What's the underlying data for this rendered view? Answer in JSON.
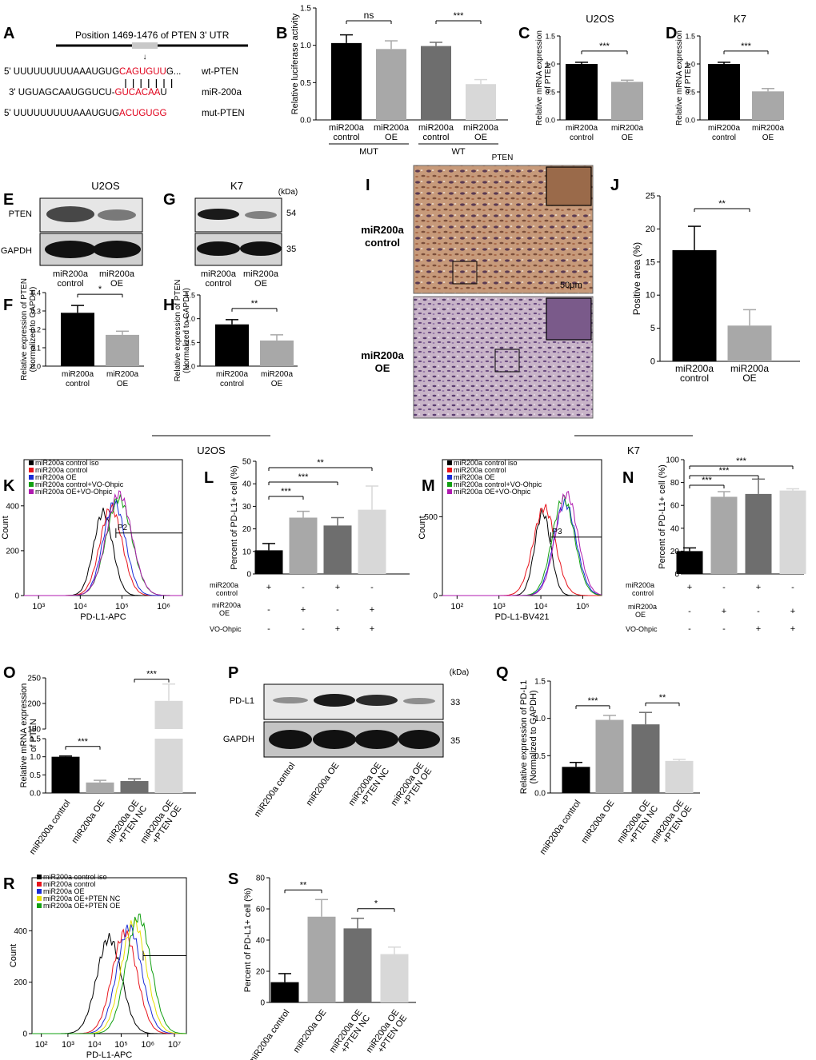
{
  "panel_letters": [
    "A",
    "B",
    "C",
    "D",
    "E",
    "F",
    "G",
    "H",
    "I",
    "J",
    "K",
    "L",
    "M",
    "N",
    "O",
    "P",
    "Q",
    "R",
    "S"
  ],
  "panelA": {
    "header": "Position 1469-1476 of PTEN 3' UTR",
    "wt": {
      "prefix": "5' UUUUUUUUUAAAUGUG",
      "seed": "CAGUGUU",
      "suffix": "G...",
      "label": "wt-PTEN"
    },
    "mir": {
      "prefix": "3' UGUAGCAAUGGUCU-",
      "seed": "GUCACAA",
      "suffix": "U",
      "label": "miR-200a"
    },
    "mut": {
      "prefix": "5' UUUUUUUUUAAAUGUG",
      "seed": "ACUGUGG",
      "suffix": "",
      "label": "mut-PTEN"
    },
    "seed_color": "#e0001a"
  },
  "group_labels": {
    "control": [
      "miR200a",
      "control"
    ],
    "oe": [
      "miR200a",
      "OE"
    ]
  },
  "blots": {
    "E": {
      "title": "U2OS",
      "rows": [
        "PTEN",
        "GAPDH"
      ]
    },
    "G": {
      "title": "K7",
      "unit": "(kDa)",
      "sizes": [
        "54",
        "35"
      ]
    },
    "P": {
      "rows": [
        "PD-L1",
        "GAPDH"
      ],
      "unit": "(kDa)",
      "sizes": [
        "33",
        "35"
      ],
      "lanes": [
        "miR200a control",
        "miR200a OE",
        "miR200a OE\n+PTEN NC",
        "miR200a OE\n+PTEN OE"
      ]
    }
  },
  "panelI": {
    "title": "PTEN",
    "rows": [
      [
        "miR200a",
        "control"
      ],
      [
        "miR200a",
        "OE"
      ]
    ],
    "scale": "50μm"
  },
  "section_labels": {
    "left": "U2OS",
    "right": "K7"
  },
  "table_rows": {
    "control": [
      "miR200a",
      "control"
    ],
    "oe": [
      "miR200a",
      "OE"
    ],
    "vo": "VO-Ohpic"
  },
  "table_signs": {
    "control": [
      "+",
      "-",
      "+",
      "-"
    ],
    "oe": [
      "-",
      "+",
      "-",
      "+"
    ],
    "vo": [
      "-",
      "-",
      "+",
      "+"
    ]
  },
  "flow": {
    "K": {
      "legend": [
        "miR200a control iso",
        "miR200a control",
        "miR200a OE",
        "miR200a control+VO-Ohpic",
        "miR200a OE+VO-Ohpic"
      ],
      "colors": [
        "#000000",
        "#e8141c",
        "#1a2cd6",
        "#12a012",
        "#b01ab0"
      ],
      "xlabel": "PD-L1-APC",
      "ylabel": "Count",
      "yticks": [
        "0",
        "200",
        "400"
      ],
      "xticks": [
        "10³",
        "10⁴",
        "10⁵",
        "10⁶"
      ],
      "gate": "P2"
    },
    "M": {
      "legend": [
        "miR200a control iso",
        "miR200a control",
        "miR200a OE",
        "miR200a control+VO-Ohpic",
        "miR200a OE+VO-Ohpic"
      ],
      "colors": [
        "#000000",
        "#e8141c",
        "#1a2cd6",
        "#12a012",
        "#b01ab0"
      ],
      "xlabel": "PD-L1-BV421",
      "ylabel": "Count",
      "yticks": [
        "0",
        "500"
      ],
      "xticks": [
        "10²",
        "10³",
        "10⁴",
        "10⁵"
      ],
      "gate": "P3"
    },
    "R": {
      "legend": [
        "miR200a control iso",
        "miR200a control",
        "miR200a OE",
        "miR200a OE+PTEN NC",
        "miR200a OE+PTEN OE"
      ],
      "colors": [
        "#000000",
        "#e8141c",
        "#1a2cd6",
        "#e8e000",
        "#12a012"
      ],
      "xlabel": "PD-L1-APC",
      "ylabel": "Count",
      "yticks": [
        "0",
        "200",
        "400"
      ],
      "xticks": [
        "10²",
        "10³",
        "10⁴",
        "10⁵",
        "10⁶",
        "10⁷"
      ]
    }
  },
  "chart_data": [
    {
      "id": "B",
      "type": "bar",
      "ylabel": "Relative luciferase activity",
      "ylim": [
        0,
        1.5
      ],
      "yticks": [
        "0.0",
        "0.5",
        "1.0",
        "1.5"
      ],
      "values": [
        1.03,
        0.95,
        0.99,
        0.48
      ],
      "errors": [
        0.11,
        0.11,
        0.05,
        0.06
      ],
      "colors": [
        "#000000",
        "#a8a8a8",
        "#6e6e6e",
        "#d8d8d8"
      ],
      "categories": [
        [
          "miR200a",
          "control"
        ],
        [
          "miR200a",
          "OE"
        ],
        [
          "miR200a",
          "control"
        ],
        [
          "miR200a",
          "OE"
        ]
      ],
      "group_labels": [
        "MUT",
        "WT"
      ],
      "sig": [
        {
          "from": 0,
          "to": 1,
          "label": "ns"
        },
        {
          "from": 2,
          "to": 3,
          "label": "***"
        }
      ]
    },
    {
      "id": "C",
      "type": "bar",
      "title": "U2OS",
      "ylabel": [
        "Relative mRNA expression",
        "of PTEN"
      ],
      "ylim": [
        0,
        1.5
      ],
      "yticks": [
        "0.0",
        "0.5",
        "1.0",
        "1.5"
      ],
      "values": [
        1.0,
        0.68
      ],
      "errors": [
        0.03,
        0.03
      ],
      "colors": [
        "#000000",
        "#a8a8a8"
      ],
      "categories": [
        [
          "miR200a",
          "control"
        ],
        [
          "miR200a",
          "OE"
        ]
      ],
      "sig": [
        {
          "from": 0,
          "to": 1,
          "label": "***"
        }
      ]
    },
    {
      "id": "D",
      "type": "bar",
      "title": "K7",
      "ylabel": [
        "Relative mRNA expression",
        "of PTEN"
      ],
      "ylim": [
        0,
        1.5
      ],
      "yticks": [
        "0.0",
        "0.5",
        "1.0",
        "1.5"
      ],
      "values": [
        1.0,
        0.51
      ],
      "errors": [
        0.03,
        0.05
      ],
      "colors": [
        "#000000",
        "#a8a8a8"
      ],
      "categories": [
        [
          "miR200a",
          "control"
        ],
        [
          "miR200a",
          "OE"
        ]
      ],
      "sig": [
        {
          "from": 0,
          "to": 1,
          "label": "***"
        }
      ]
    },
    {
      "id": "F",
      "type": "bar",
      "ylabel": [
        "Relative expression of PTEN",
        "(Normalized to GAPDH)"
      ],
      "ylim": [
        0,
        0.4
      ],
      "yticks": [
        "0.0",
        "0.1",
        "0.2",
        "0.3",
        "0.4"
      ],
      "values": [
        0.29,
        0.17
      ],
      "errors": [
        0.04,
        0.02
      ],
      "colors": [
        "#000000",
        "#a8a8a8"
      ],
      "categories": [
        [
          "miR200a",
          "control"
        ],
        [
          "miR200a",
          "OE"
        ]
      ],
      "sig": [
        {
          "from": 0,
          "to": 1,
          "label": "*"
        }
      ]
    },
    {
      "id": "H",
      "type": "bar",
      "ylabel": [
        "Relative expression of PTEN",
        "(Normalized to GAPDH)"
      ],
      "ylim": [
        0,
        1.5
      ],
      "yticks": [
        "0.0",
        "0.5",
        "1.0",
        "1.5"
      ],
      "values": [
        0.88,
        0.54
      ],
      "errors": [
        0.1,
        0.12
      ],
      "colors": [
        "#000000",
        "#a8a8a8"
      ],
      "categories": [
        [
          "miR200a",
          "control"
        ],
        [
          "miR200a",
          "OE"
        ]
      ],
      "sig": [
        {
          "from": 0,
          "to": 1,
          "label": "**"
        }
      ]
    },
    {
      "id": "J",
      "type": "bar",
      "ylabel": "Positive area (%)",
      "ylim": [
        0,
        25
      ],
      "yticks": [
        "0",
        "5",
        "10",
        "15",
        "20",
        "25"
      ],
      "values": [
        16.8,
        5.4
      ],
      "errors": [
        3.6,
        2.4
      ],
      "colors": [
        "#000000",
        "#a8a8a8"
      ],
      "categories": [
        [
          "miR200a",
          "control"
        ],
        [
          "miR200a",
          "OE"
        ]
      ],
      "sig": [
        {
          "from": 0,
          "to": 1,
          "label": "**"
        }
      ]
    },
    {
      "id": "L",
      "type": "bar",
      "ylabel": "Percent of PD-L1+ cell (%)",
      "ylim": [
        0,
        50
      ],
      "yticks": [
        "0",
        "10",
        "20",
        "30",
        "40",
        "50"
      ],
      "values": [
        10.5,
        25.0,
        21.5,
        28.5
      ],
      "errors": [
        3.0,
        2.8,
        3.5,
        10.5
      ],
      "colors": [
        "#000000",
        "#a8a8a8",
        "#6e6e6e",
        "#d8d8d8"
      ],
      "sig": [
        {
          "from": 0,
          "to": 1,
          "label": "***",
          "level": 1
        },
        {
          "from": 0,
          "to": 2,
          "label": "***",
          "level": 2
        },
        {
          "from": 0,
          "to": 3,
          "label": "**",
          "level": 3
        }
      ]
    },
    {
      "id": "N",
      "type": "bar",
      "ylabel": "Percent of PD-L1+ cell (%)",
      "ylim": [
        0,
        100
      ],
      "yticks": [
        "0",
        "20",
        "40",
        "60",
        "80",
        "100"
      ],
      "values": [
        20.0,
        67.5,
        70.0,
        73.0
      ],
      "errors": [
        2.8,
        4.5,
        13.0,
        1.5
      ],
      "colors": [
        "#000000",
        "#a8a8a8",
        "#6e6e6e",
        "#d8d8d8"
      ],
      "sig": [
        {
          "from": 0,
          "to": 1,
          "label": "***",
          "level": 1
        },
        {
          "from": 0,
          "to": 2,
          "label": "***",
          "level": 2
        },
        {
          "from": 0,
          "to": 3,
          "label": "***",
          "level": 3
        }
      ]
    },
    {
      "id": "O",
      "type": "bar",
      "ylabel": [
        "Relative mRNA expression",
        "of PTEN"
      ],
      "broken_axis": true,
      "yticks_low": [
        "0.0",
        "0.5",
        "1.0",
        "1.5"
      ],
      "yticks_high": [
        "150",
        "200",
        "250"
      ],
      "values": [
        1.0,
        0.29,
        0.33,
        205
      ],
      "errors": [
        0.02,
        0.06,
        0.06,
        33
      ],
      "colors": [
        "#000000",
        "#a8a8a8",
        "#6e6e6e",
        "#d8d8d8"
      ],
      "categories": [
        "miR200a control",
        "miR200a OE",
        "miR200a OE\n+PTEN NC",
        "miR200a OE\n+PTEN OE"
      ],
      "sig": [
        {
          "from": 0,
          "to": 1,
          "label": "***"
        },
        {
          "from": 2,
          "to": 3,
          "label": "***"
        }
      ]
    },
    {
      "id": "Q",
      "type": "bar",
      "ylabel": [
        "Relative expression of PD-L1",
        "(Normalized to GAPDH)"
      ],
      "ylim": [
        0,
        1.5
      ],
      "yticks": [
        "0.0",
        "0.5",
        "1.0",
        "1.5"
      ],
      "values": [
        0.35,
        0.98,
        0.92,
        0.43
      ],
      "errors": [
        0.06,
        0.06,
        0.16,
        0.02
      ],
      "colors": [
        "#000000",
        "#a8a8a8",
        "#6e6e6e",
        "#d8d8d8"
      ],
      "categories": [
        "miR200a control",
        "miR200a OE",
        "miR200a OE\n+PTEN NC",
        "miR200a OE\n+PTEN OE"
      ],
      "sig": [
        {
          "from": 0,
          "to": 1,
          "label": "***"
        },
        {
          "from": 2,
          "to": 3,
          "label": "**"
        }
      ]
    },
    {
      "id": "S",
      "type": "bar",
      "ylabel": "Percent of PD-L1+ cell (%)",
      "ylim": [
        0,
        80
      ],
      "yticks": [
        "0",
        "20",
        "40",
        "60",
        "80"
      ],
      "values": [
        13.0,
        55.0,
        47.5,
        31.0
      ],
      "errors": [
        5.5,
        11.0,
        6.5,
        4.5
      ],
      "colors": [
        "#000000",
        "#a8a8a8",
        "#6e6e6e",
        "#d8d8d8"
      ],
      "categories": [
        "miR200a control",
        "miR200a OE",
        "miR200a OE\n+PTEN NC",
        "miR200a OE\n+PTEN OE"
      ],
      "sig": [
        {
          "from": 0,
          "to": 1,
          "label": "**"
        },
        {
          "from": 2,
          "to": 3,
          "label": "*"
        }
      ]
    }
  ]
}
